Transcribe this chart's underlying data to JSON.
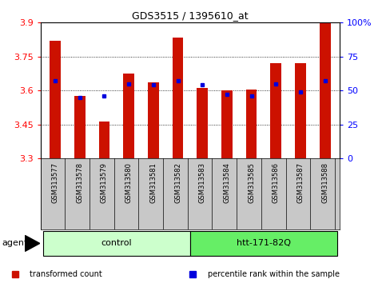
{
  "title": "GDS3515 / 1395610_at",
  "samples": [
    "GSM313577",
    "GSM313578",
    "GSM313579",
    "GSM313580",
    "GSM313581",
    "GSM313582",
    "GSM313583",
    "GSM313584",
    "GSM313585",
    "GSM313586",
    "GSM313587",
    "GSM313588"
  ],
  "transformed_counts": [
    3.82,
    3.575,
    3.463,
    3.675,
    3.635,
    3.835,
    3.612,
    3.602,
    3.603,
    3.72,
    3.72,
    3.9
  ],
  "percentile_ranks_pct": [
    57,
    45,
    46,
    55,
    54,
    57,
    54,
    47,
    46,
    55,
    49,
    57
  ],
  "ymin": 3.3,
  "ymax": 3.9,
  "yticks": [
    3.3,
    3.45,
    3.6,
    3.75,
    3.9
  ],
  "ytick_labels": [
    "3.3",
    "3.45",
    "3.6",
    "3.75",
    "3.9"
  ],
  "right_yticks": [
    0,
    25,
    50,
    75,
    100
  ],
  "right_ytick_labels": [
    "0",
    "25",
    "50",
    "75",
    "100%"
  ],
  "groups": [
    {
      "label": "control",
      "start": 0,
      "end": 5,
      "color": "#ccffcc"
    },
    {
      "label": "htt-171-82Q",
      "start": 6,
      "end": 11,
      "color": "#66ee66"
    }
  ],
  "bar_color": "#cc1100",
  "percentile_color": "#0000dd",
  "bar_width": 0.45,
  "plot_bg_color": "#ffffff",
  "xtick_bg_color": "#c8c8c8",
  "agent_label": "agent",
  "legend_items": [
    {
      "color": "#cc1100",
      "label": "transformed count"
    },
    {
      "color": "#0000dd",
      "label": "percentile rank within the sample"
    }
  ]
}
